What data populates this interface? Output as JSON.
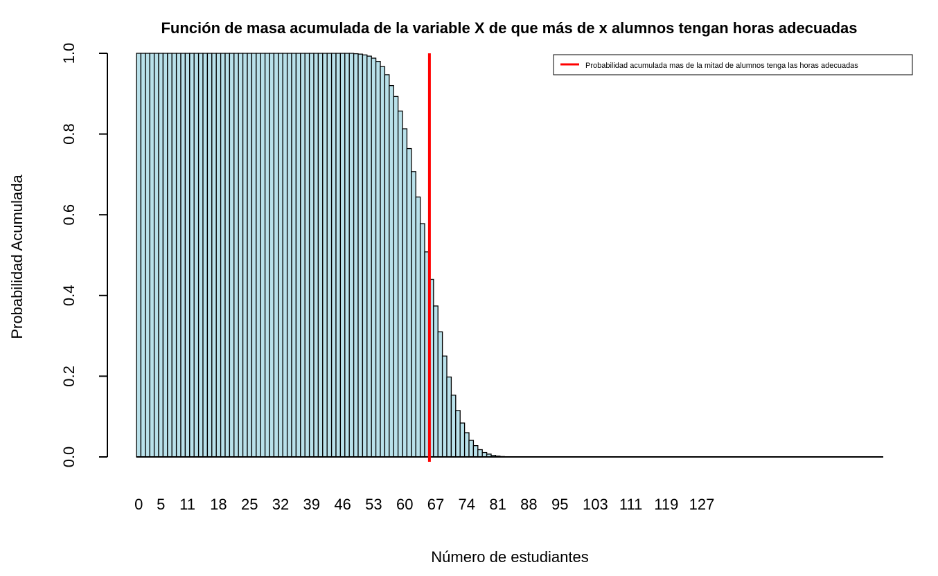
{
  "chart_data": {
    "type": "bar",
    "title": "Función de masa acumulada de la variable X de que más de x alumnos tengan horas adecuadas",
    "xlabel": "Número de estudiantes",
    "ylabel": "Probabilidad Acumulada",
    "ylim": [
      0,
      1
    ],
    "y_ticks": [
      "0.0",
      "0.2",
      "0.4",
      "0.6",
      "0.8",
      "1.0"
    ],
    "x_tick_labels": [
      "0",
      "5",
      "11",
      "18",
      "25",
      "32",
      "39",
      "46",
      "53",
      "60",
      "67",
      "74",
      "81",
      "88",
      "95",
      "103",
      "111",
      "119",
      "127"
    ],
    "categories_range": [
      0,
      132
    ],
    "values_from_48": [
      1.0,
      0.999,
      0.998,
      0.996,
      0.993,
      0.988,
      0.98,
      0.967,
      0.947,
      0.92,
      0.893,
      0.857,
      0.813,
      0.764,
      0.707,
      0.644,
      0.578,
      0.508,
      0.44,
      0.374,
      0.31,
      0.25,
      0.198,
      0.153,
      0.115,
      0.084,
      0.06,
      0.041,
      0.028,
      0.018,
      0.011,
      0.007,
      0.004,
      0.002,
      0.001,
      0.0006,
      0.0003,
      0.0001
    ],
    "bar_fill": "#b9e1ea",
    "bar_stroke": "#000000",
    "reference_line": {
      "x": 66,
      "color": "#ff0000",
      "label": "Probabilidad acumulada mas de la mitad de alumnos tenga las horas adecuadas"
    },
    "legend_position": "top-right"
  }
}
